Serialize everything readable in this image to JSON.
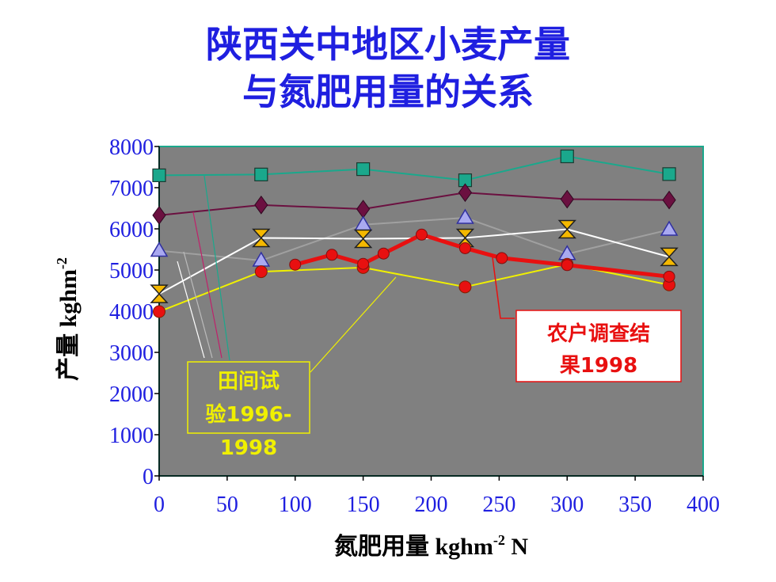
{
  "title_line1": "陕西关中地区小麦产量",
  "title_line2": "与氮肥用量的关系",
  "chart_data": {
    "type": "line",
    "ylabel": {
      "text": "产量 kghm",
      "sup": "-2"
    },
    "xlabel": {
      "text": "氮肥用量 kghm",
      "sup": "-2",
      "tail": " N"
    },
    "xlim": [
      0,
      400
    ],
    "ylim": [
      0,
      8000
    ],
    "xticks": [
      0,
      50,
      100,
      150,
      200,
      250,
      300,
      350,
      400
    ],
    "yticks": [
      0,
      1000,
      2000,
      3000,
      4000,
      5000,
      6000,
      7000,
      8000
    ],
    "plot_background": "#808080",
    "plot_border": "#1aa88c",
    "series": [
      {
        "color": "#1aa88c",
        "marker": "square",
        "width": 2,
        "points": [
          [
            0,
            7300
          ],
          [
            75,
            7320
          ],
          [
            150,
            7450
          ],
          [
            225,
            7180
          ],
          [
            300,
            7760
          ],
          [
            375,
            7330
          ]
        ]
      },
      {
        "color": "#6b1040",
        "marker": "diamond",
        "width": 2,
        "points": [
          [
            0,
            6330
          ],
          [
            75,
            6580
          ],
          [
            150,
            6480
          ],
          [
            225,
            6880
          ],
          [
            300,
            6720
          ],
          [
            375,
            6700
          ]
        ]
      },
      {
        "color": "#a0a0a0",
        "marker": "triangle",
        "width": 2,
        "points": [
          [
            0,
            5470
          ],
          [
            75,
            5230
          ],
          [
            150,
            6100
          ],
          [
            225,
            6270
          ],
          [
            300,
            5390
          ],
          [
            375,
            5980
          ]
        ]
      },
      {
        "color": "#ffffff",
        "marker": "hourglass",
        "width": 2,
        "points": [
          [
            0,
            4420
          ],
          [
            75,
            5780
          ],
          [
            150,
            5760
          ],
          [
            225,
            5780
          ],
          [
            300,
            5990
          ],
          [
            375,
            5320
          ]
        ]
      },
      {
        "color": "#f0f000",
        "marker": "circle",
        "width": 2,
        "points": [
          [
            0,
            3990
          ],
          [
            75,
            4960
          ],
          [
            150,
            5060
          ],
          [
            225,
            4590
          ],
          [
            300,
            5140
          ],
          [
            375,
            4640
          ]
        ]
      },
      {
        "color": "#e81010",
        "marker": "circle-small",
        "width": 5,
        "points": [
          [
            100,
            5130
          ],
          [
            127,
            5370
          ],
          [
            150,
            5150
          ],
          [
            165,
            5400
          ],
          [
            193,
            5860
          ],
          [
            225,
            5530
          ],
          [
            252,
            5290
          ],
          [
            300,
            5120
          ],
          [
            375,
            4840
          ]
        ]
      }
    ],
    "annotations": [
      {
        "lines": [
          "田间试",
          "验1996-",
          "1998"
        ],
        "color": "#f0f000"
      },
      {
        "lines": [
          "农户调查结",
          "果1998"
        ],
        "color": "#e81010"
      }
    ]
  }
}
